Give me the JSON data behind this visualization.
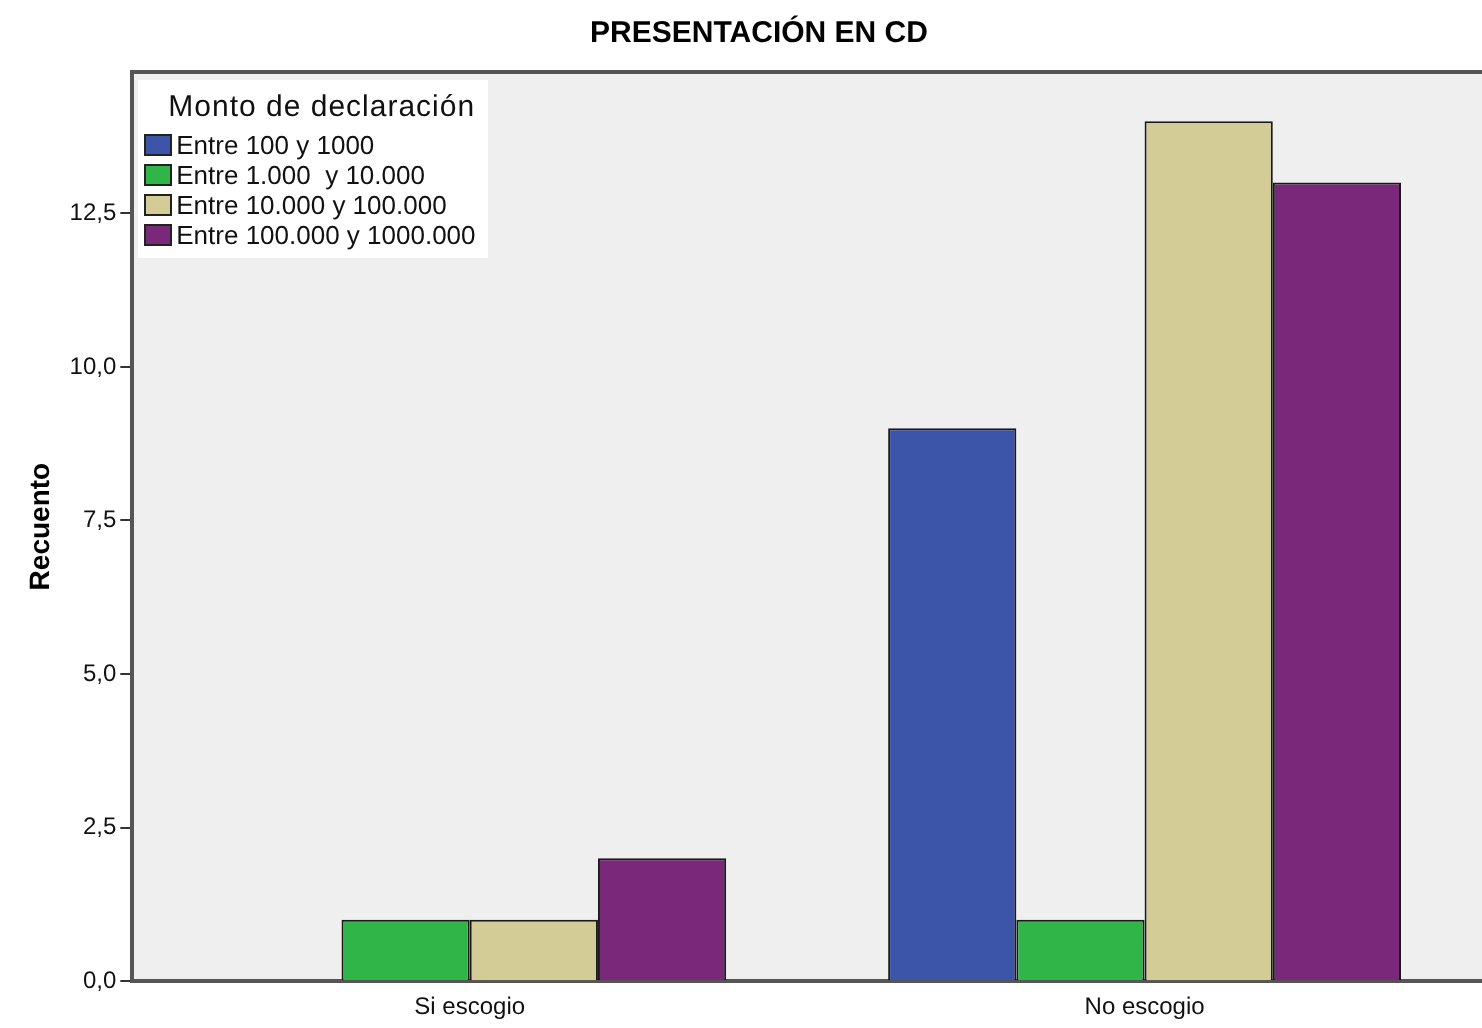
{
  "chart_data": {
    "type": "bar",
    "title": "PRESENTACIÓN EN CD",
    "ylabel": "Recuento",
    "legend_title": "Monto de declaración",
    "legend": "top left",
    "grid": false,
    "categories": [
      "Si escogio",
      "No escogio"
    ],
    "series": [
      {
        "name": "Entre 100 y 1000",
        "color": "#3d55a8",
        "values": [
          0,
          9
        ]
      },
      {
        "name": "Entre 1.000  y 10.000",
        "color": "#2fb548",
        "values": [
          1,
          1
        ]
      },
      {
        "name": "Entre 10.000 y 100.000",
        "color": "#d3cc96",
        "values": [
          1,
          14
        ]
      },
      {
        "name": "Entre 100.000 y 1000.000",
        "color": "#7a297a",
        "values": [
          2,
          13
        ]
      }
    ],
    "ylim": [
      0,
      14.8
    ],
    "yticks": [
      {
        "value": 0,
        "label": "0,0"
      },
      {
        "value": 2.5,
        "label": "2,5"
      },
      {
        "value": 5,
        "label": "5,0"
      },
      {
        "value": 7.5,
        "label": "7,5"
      },
      {
        "value": 10,
        "label": "10,0"
      },
      {
        "value": 12.5,
        "label": "12,5"
      }
    ]
  }
}
